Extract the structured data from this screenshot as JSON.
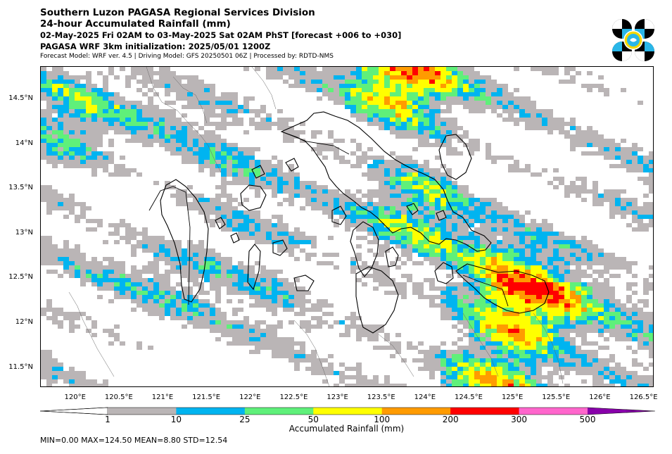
{
  "header": {
    "title_line1": "Southern Luzon PAGASA Regional Services Division",
    "title_line2": "24-hour Accumulated Rainfall (mm)",
    "title_line3": "02-May-2025 Fri 02AM to 03-May-2025 Sat 02AM PhST [forecast +006 to +030]",
    "title_line4": "PAGASA WRF 3km initialization: 2025/05/01 1200Z",
    "title_line5": "Forecast Model: WRF ver. 4.5 | Driving Model: GFS 20250501 06Z | Processed by: RDTD-NMS"
  },
  "map": {
    "extent": {
      "lon_min": 119.6,
      "lon_max": 126.6,
      "lat_min": 11.3,
      "lat_max": 14.87
    },
    "lat_ticks": [
      {
        "value": 14.5,
        "label": "14.5°N"
      },
      {
        "value": 14.0,
        "label": "14°N"
      },
      {
        "value": 13.5,
        "label": "13.5°N"
      },
      {
        "value": 13.0,
        "label": "13°N"
      },
      {
        "value": 12.5,
        "label": "12.5°N"
      },
      {
        "value": 12.0,
        "label": "12°N"
      },
      {
        "value": 11.5,
        "label": "11.5°N"
      }
    ],
    "lon_ticks": [
      {
        "value": 120.0,
        "label": "120°E"
      },
      {
        "value": 120.5,
        "label": "120.5°E"
      },
      {
        "value": 121.0,
        "label": "121°E"
      },
      {
        "value": 121.5,
        "label": "121.5°E"
      },
      {
        "value": 122.0,
        "label": "122°E"
      },
      {
        "value": 122.5,
        "label": "122.5°E"
      },
      {
        "value": 123.0,
        "label": "123°E"
      },
      {
        "value": 123.5,
        "label": "123.5°E"
      },
      {
        "value": 124.0,
        "label": "124°E"
      },
      {
        "value": 124.5,
        "label": "124.5°E"
      },
      {
        "value": 125.0,
        "label": "125°E"
      },
      {
        "value": 125.5,
        "label": "125.5°E"
      },
      {
        "value": 126.0,
        "label": "126°E"
      },
      {
        "value": 126.5,
        "label": "126.5°E"
      }
    ],
    "rain_colors": [
      "#bab5b6",
      "#00b4f0",
      "#5ff07a",
      "#ffff00",
      "#ff9b00",
      "#ff0000",
      "#ff66cc",
      "#8800aa"
    ]
  },
  "colorbar": {
    "title": "Accumulated Rainfall (mm)",
    "levels": [
      {
        "label": "1"
      },
      {
        "label": "10"
      },
      {
        "label": "25"
      },
      {
        "label": "50"
      },
      {
        "label": "100"
      },
      {
        "label": "200"
      },
      {
        "label": "300"
      },
      {
        "label": "500"
      }
    ],
    "under_color": "#ffffff",
    "colors": [
      "#bab5b6",
      "#00b4f0",
      "#5ff07a",
      "#ffff00",
      "#ff9b00",
      "#ff0000",
      "#ff66cc"
    ],
    "over_color": "#8800aa"
  },
  "stats": {
    "text": "MIN=0.00   MAX=124.50   MEAN=8.80   STD=12.54"
  },
  "logo": {
    "icon": "pagasa-logo-icon",
    "colors": [
      "#000000",
      "#29b6e8",
      "#f5d800"
    ]
  }
}
